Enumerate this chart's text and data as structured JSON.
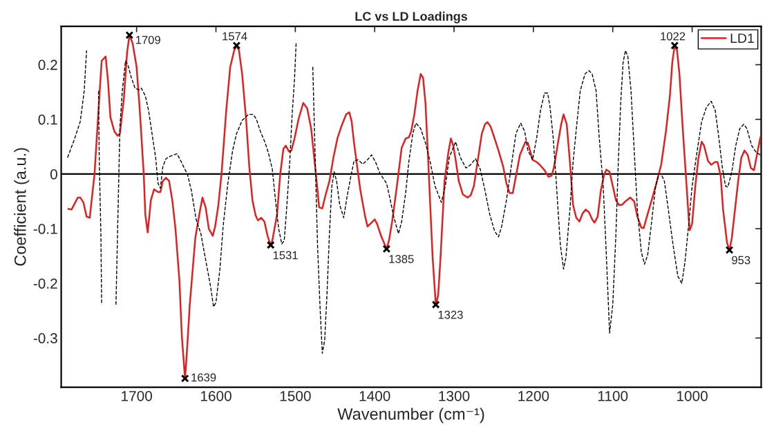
{
  "chart_data": {
    "type": "line",
    "title": "LC vs LD Loadings",
    "xlabel": "Wavenumber (cm⁻¹)",
    "ylabel": "Coefficient (a.u.)",
    "xlim": [
      1795,
      913
    ],
    "ylim": [
      -0.39,
      0.27
    ],
    "xticks": [
      1700,
      1600,
      1500,
      1400,
      1300,
      1200,
      1100,
      1000
    ],
    "yticks": [
      -0.3,
      -0.2,
      -0.1,
      0,
      0.1,
      0.2
    ],
    "grid": false,
    "legend": "top right",
    "ref_lines": [
      {
        "axis": "y",
        "value": 0,
        "color": "#000000",
        "line_style": "solid"
      }
    ],
    "series": [
      {
        "name": "LD1",
        "color": "#e02020",
        "line_style": "solid",
        "x": [
          1786,
          1782,
          1774,
          1771,
          1767,
          1763,
          1759,
          1753,
          1748,
          1744,
          1739,
          1736,
          1733,
          1728,
          1724,
          1721,
          1716,
          1712,
          1709,
          1705,
          1700,
          1696,
          1691,
          1689,
          1686,
          1682,
          1678,
          1673,
          1670,
          1667,
          1663,
          1659,
          1655,
          1651,
          1646,
          1643,
          1639,
          1637,
          1633,
          1626,
          1621,
          1617,
          1613,
          1609,
          1604,
          1601,
          1597,
          1593,
          1587,
          1582,
          1577,
          1574,
          1571,
          1567,
          1562,
          1558,
          1554,
          1550,
          1547,
          1543,
          1539,
          1535,
          1531,
          1529,
          1523,
          1519,
          1515,
          1512,
          1508,
          1505,
          1501,
          1496,
          1490,
          1485,
          1480,
          1475,
          1472,
          1470,
          1466,
          1462,
          1457,
          1452,
          1447,
          1442,
          1436,
          1432,
          1429,
          1426,
          1422,
          1418,
          1412,
          1409,
          1404,
          1400,
          1397,
          1392,
          1385,
          1382,
          1378,
          1372,
          1366,
          1361,
          1357,
          1354,
          1350,
          1346,
          1342,
          1339,
          1336,
          1333,
          1330,
          1327,
          1323,
          1320,
          1317,
          1312,
          1307,
          1304,
          1301,
          1298,
          1294,
          1289,
          1283,
          1279,
          1275,
          1270,
          1265,
          1261,
          1258,
          1254,
          1250,
          1244,
          1238,
          1234,
          1230,
          1226,
          1222,
          1217,
          1210,
          1207,
          1201,
          1196,
          1192,
          1186,
          1181,
          1177,
          1174,
          1169,
          1165,
          1162,
          1158,
          1154,
          1150,
          1146,
          1142,
          1138,
          1134,
          1130,
          1126,
          1123,
          1119,
          1115,
          1111,
          1108,
          1104,
          1100,
          1096,
          1092,
          1088,
          1084,
          1078,
          1073,
          1069,
          1064,
          1061,
          1057,
          1051,
          1045,
          1039,
          1033,
          1028,
          1025,
          1022,
          1019,
          1016,
          1012,
          1008,
          1004,
          1003,
          1000,
          996,
          992,
          988,
          985,
          980,
          976,
          971,
          968,
          964,
          961,
          956,
          953,
          950,
          946,
          942,
          938,
          934,
          930,
          926,
          922,
          919,
          914
        ],
        "values": [
          -0.064,
          -0.065,
          -0.043,
          -0.043,
          -0.052,
          -0.078,
          -0.08,
          0,
          0.117,
          0.207,
          0.215,
          0.17,
          0.104,
          0.078,
          0.07,
          0.074,
          0.139,
          0.222,
          0.254,
          0.239,
          0.196,
          0.117,
          0,
          -0.074,
          -0.107,
          -0.048,
          -0.028,
          -0.033,
          -0.033,
          -0.013,
          -0.007,
          -0.013,
          -0.048,
          -0.1,
          -0.196,
          -0.296,
          -0.374,
          -0.335,
          -0.239,
          -0.117,
          -0.074,
          -0.043,
          -0.061,
          -0.1,
          -0.113,
          -0.096,
          -0.057,
          0,
          0.117,
          0.196,
          0.226,
          0.235,
          0.226,
          0.183,
          0.1,
          0.013,
          -0.048,
          -0.076,
          -0.085,
          -0.08,
          -0.087,
          -0.113,
          -0.13,
          -0.122,
          -0.074,
          0,
          0.046,
          0.052,
          0.041,
          0.043,
          0.065,
          0.1,
          0.13,
          0.12,
          0.083,
          0.013,
          -0.03,
          -0.061,
          -0.063,
          -0.039,
          -0.013,
          0.03,
          0.065,
          0.087,
          0.109,
          0.113,
          0.096,
          0.057,
          0.013,
          -0.03,
          -0.078,
          -0.096,
          -0.089,
          -0.083,
          -0.091,
          -0.113,
          -0.137,
          -0.122,
          -0.087,
          -0.022,
          0.048,
          0.065,
          0.067,
          0.078,
          0.109,
          0.152,
          0.183,
          0.176,
          0.13,
          0.039,
          -0.057,
          -0.152,
          -0.239,
          -0.222,
          -0.152,
          -0.013,
          0.041,
          0.065,
          0.052,
          0.026,
          -0.013,
          -0.037,
          -0.043,
          -0.039,
          -0.022,
          0.026,
          0.074,
          0.091,
          0.095,
          0.087,
          0.07,
          0.043,
          0.013,
          -0.017,
          -0.035,
          -0.035,
          -0.004,
          0.035,
          0.059,
          0.057,
          0.026,
          0.022,
          0.017,
          0.007,
          -0.005,
          -0.003,
          0.013,
          0.057,
          0.091,
          0.109,
          0.091,
          0.022,
          -0.057,
          -0.08,
          -0.087,
          -0.072,
          -0.065,
          -0.07,
          -0.083,
          -0.089,
          -0.078,
          -0.03,
          -0.002,
          0.008,
          0.004,
          -0.022,
          -0.048,
          -0.057,
          -0.056,
          -0.05,
          -0.043,
          -0.05,
          -0.078,
          -0.098,
          -0.099,
          -0.078,
          -0.048,
          -0.017,
          0.017,
          0.078,
          0.143,
          0.204,
          0.235,
          0.226,
          0.183,
          0.087,
          0,
          -0.087,
          -0.103,
          -0.091,
          -0.022,
          0.03,
          0.059,
          0.052,
          0.024,
          0.017,
          0.022,
          0.022,
          -0.004,
          -0.065,
          -0.126,
          -0.139,
          -0.117,
          -0.065,
          -0.013,
          0.03,
          0.043,
          0.035,
          0.011,
          0.007,
          0.03,
          0.067
        ]
      },
      {
        "color": "#000000",
        "line_style": "dashed",
        "x": [
          1787,
          1778,
          1771,
          1766,
          1763,
          1761,
          1756,
          1751,
          1748,
          1747,
          1745,
          1744,
          1742,
          1735,
          1727,
          1726,
          1724,
          1722,
          1721,
          1718,
          1714,
          1711,
          1707,
          1702,
          1697,
          1694,
          1689,
          1685,
          1681,
          1676,
          1673,
          1670,
          1667,
          1663,
          1657,
          1649,
          1645,
          1640,
          1636,
          1631,
          1625,
          1619,
          1613,
          1607,
          1603,
          1600,
          1595,
          1591,
          1585,
          1579,
          1574,
          1567,
          1559,
          1553,
          1549,
          1544,
          1538,
          1534,
          1529,
          1525,
          1521,
          1517,
          1514,
          1511,
          1507,
          1504,
          1501,
          1499,
          1497,
          1488,
          1480,
          1478,
          1476,
          1474,
          1472,
          1469,
          1466,
          1463,
          1460,
          1457,
          1454,
          1451,
          1448,
          1444,
          1439,
          1435,
          1430,
          1426,
          1421,
          1415,
          1409,
          1404,
          1399,
          1393,
          1385,
          1381,
          1376,
          1370,
          1366,
          1361,
          1357,
          1352,
          1348,
          1342,
          1336,
          1330,
          1324,
          1316,
          1311,
          1306,
          1298,
          1292,
          1285,
          1279,
          1273,
          1267,
          1261,
          1255,
          1249,
          1244,
          1240,
          1234,
          1228,
          1222,
          1216,
          1211,
          1207,
          1201,
          1196,
          1191,
          1186,
          1182,
          1179,
          1175,
          1172,
          1169,
          1166,
          1162,
          1159,
          1154,
          1150,
          1145,
          1141,
          1135,
          1130,
          1126,
          1121,
          1117,
          1112,
          1108,
          1104,
          1100,
          1096,
          1093,
          1090,
          1087,
          1084,
          1081,
          1077,
          1073,
          1069,
          1064,
          1060,
          1056,
          1051,
          1046,
          1042,
          1039,
          1035,
          1030,
          1024,
          1018,
          1013,
          1009,
          1004,
          1000,
          994,
          988,
          982,
          976,
          971,
          967,
          962,
          958,
          955,
          950,
          945,
          940,
          935,
          931,
          925,
          919,
          914
        ],
        "values": [
          0.03,
          0.065,
          0.096,
          0.152,
          0.226,
          null,
          null,
          null,
          0.152,
          0.022,
          -0.109,
          -0.239,
          null,
          null,
          null,
          -0.239,
          -0.109,
          0.022,
          0.087,
          0.152,
          0.207,
          0.2,
          0.178,
          0.157,
          0.154,
          0.157,
          0.143,
          0.117,
          0.078,
          0.03,
          -0.017,
          -0.026,
          0.013,
          0.028,
          0.033,
          0.037,
          0.026,
          0.011,
          0,
          -0.03,
          -0.083,
          -0.109,
          -0.157,
          -0.204,
          -0.243,
          -0.235,
          -0.174,
          -0.096,
          -0.017,
          0.043,
          0.074,
          0.098,
          0.109,
          0.109,
          0.1,
          0.078,
          0.057,
          0.039,
          0.009,
          -0.048,
          -0.1,
          -0.128,
          -0.122,
          -0.065,
          0.022,
          0.109,
          0.174,
          0.239,
          null,
          null,
          null,
          0.196,
          0.087,
          -0.022,
          -0.13,
          -0.239,
          -0.328,
          -0.304,
          -0.217,
          -0.109,
          -0.022,
          0.004,
          -0.013,
          -0.057,
          -0.08,
          -0.043,
          -0.004,
          0.024,
          0.026,
          0.018,
          0.026,
          0.035,
          0.022,
          0,
          -0.017,
          -0.043,
          -0.078,
          -0.109,
          -0.087,
          -0.035,
          0.022,
          0.074,
          0.093,
          0.083,
          0.057,
          0.022,
          -0.022,
          -0.052,
          -0.022,
          0.03,
          0.059,
          0.03,
          0.011,
          0.017,
          0.028,
          0.009,
          -0.03,
          -0.074,
          -0.104,
          -0.115,
          -0.096,
          -0.048,
          0.013,
          0.074,
          0.093,
          0.078,
          0.043,
          0.026,
          0.065,
          0.117,
          0.148,
          0.148,
          0.122,
          0.065,
          0.004,
          -0.065,
          -0.13,
          -0.174,
          -0.152,
          -0.065,
          0.022,
          0.096,
          0.152,
          0.183,
          0.189,
          0.183,
          0.152,
          0.065,
          -0.022,
          -0.152,
          -0.291,
          -0.239,
          -0.109,
          0.022,
          0.13,
          0.204,
          0.226,
          0.215,
          0.152,
          0.043,
          -0.065,
          -0.143,
          -0.165,
          -0.148,
          -0.087,
          -0.022,
          0,
          0,
          -0.013,
          -0.065,
          -0.13,
          -0.187,
          -0.2,
          -0.161,
          -0.087,
          -0.022,
          0.039,
          0.096,
          0.122,
          0.133,
          0.117,
          0.074,
          0.013,
          -0.022,
          -0.024,
          0.004,
          0.052,
          0.083,
          0.091,
          0.083,
          0.052,
          0.039,
          0.035
        ]
      },
      {
        "type": "scatter",
        "color": "#000000",
        "marker": "cross",
        "x": [
          1709,
          1639,
          1574,
          1531,
          1385,
          1323,
          1022,
          953
        ],
        "values": [
          0.254,
          -0.374,
          0.235,
          -0.13,
          -0.137,
          -0.239,
          0.235,
          -0.139
        ]
      }
    ],
    "annotations": [
      {
        "text": "1709",
        "x": 1709,
        "y": 0.254
      },
      {
        "text": "1639",
        "x": 1639,
        "y": -0.374
      },
      {
        "text": "1574",
        "x": 1574,
        "y": 0.235
      },
      {
        "text": "1531",
        "x": 1531,
        "y": -0.13
      },
      {
        "text": "1385",
        "x": 1385,
        "y": -0.137
      },
      {
        "text": "1323",
        "x": 1323,
        "y": -0.239
      },
      {
        "text": "1022",
        "x": 1022,
        "y": 0.235
      },
      {
        "text": "953",
        "x": 953,
        "y": -0.139
      }
    ]
  }
}
